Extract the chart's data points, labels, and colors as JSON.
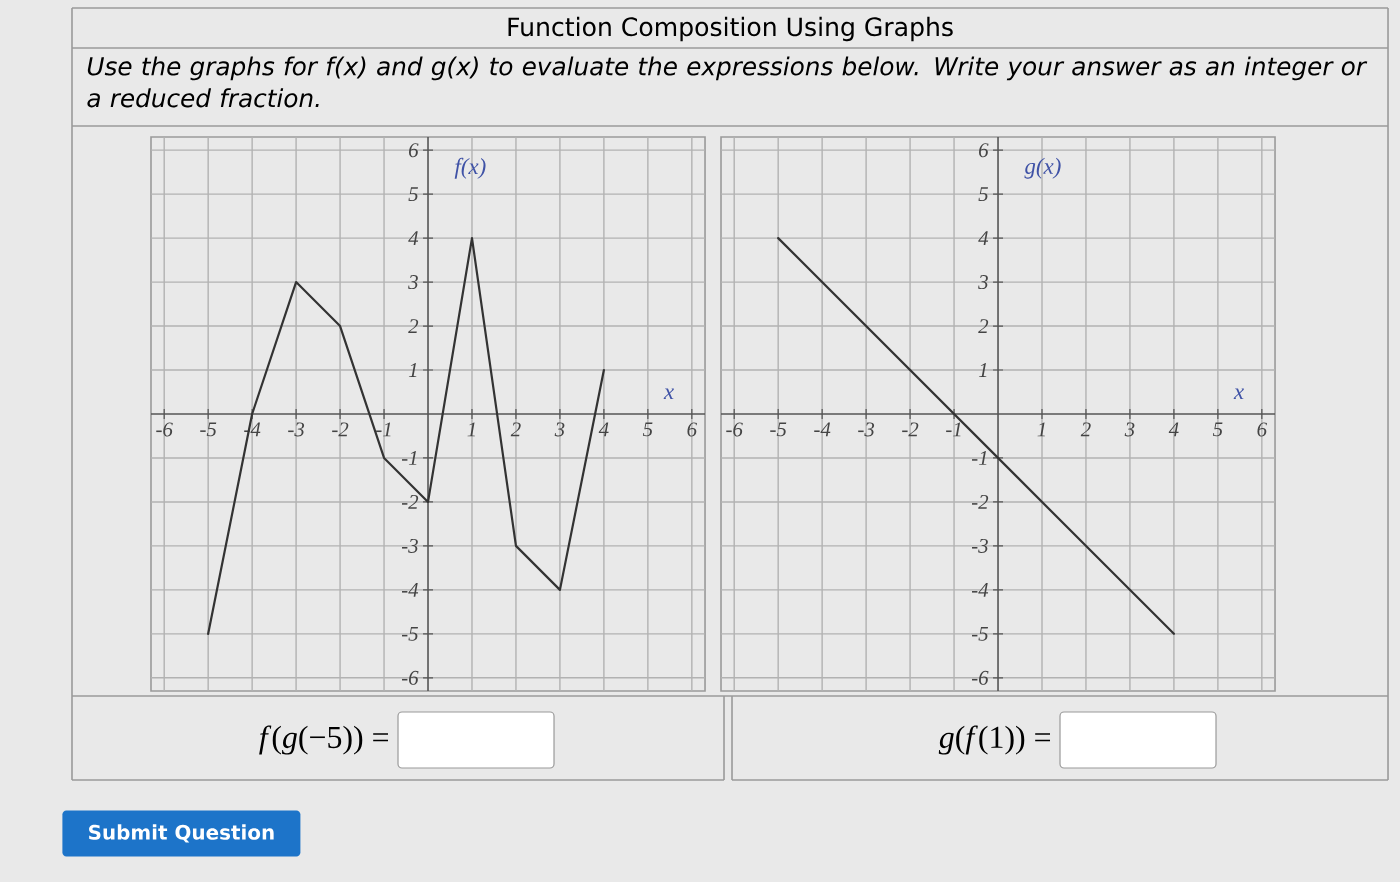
{
  "chart_data": [
    {
      "type": "line",
      "title": "Function Composition Using Graphs",
      "subtitle": "Use the graphs for f(x) and g(x) to evaluate the expressions below. Write your answer as an integer or a reduced fraction.",
      "xlabel": "x",
      "ylabel": "f(x)",
      "x": [
        -5,
        -4,
        -3,
        -2,
        -1,
        0,
        1,
        2,
        3,
        4
      ],
      "values": [
        -5,
        0,
        3,
        2,
        -1,
        -2,
        4,
        -3,
        -4,
        1
      ],
      "color": "#333333",
      "xlim": [
        -6.3,
        6.3
      ],
      "ylim": [
        -6.3,
        6.3
      ],
      "xticks": [
        -6,
        -5,
        -4,
        -3,
        -2,
        -1,
        1,
        2,
        3,
        4,
        5,
        6
      ],
      "yticks": [
        -6,
        -5,
        -4,
        -3,
        -2,
        -1,
        1,
        2,
        3,
        4,
        5,
        6
      ],
      "grid": true,
      "annotations": [
        "*f*(*g*(−5)) =",
        "Submit Question"
      ]
    },
    {
      "type": "line",
      "xlabel": "x",
      "ylabel": "g(x)",
      "x": [
        -5,
        4
      ],
      "values": [
        4,
        -5
      ],
      "color": "#333333",
      "xlim": [
        -6.3,
        6.3
      ],
      "ylim": [
        -6.3,
        6.3
      ],
      "xticks": [
        -6,
        -5,
        -4,
        -3,
        -2,
        -1,
        1,
        2,
        3,
        4,
        5,
        6
      ],
      "yticks": [
        -6,
        -5,
        -4,
        -3,
        -2,
        -1,
        1,
        2,
        3,
        4,
        5,
        6
      ],
      "grid": true,
      "annotations": [
        "*g*(*f*(1)) ="
      ]
    }
  ]
}
